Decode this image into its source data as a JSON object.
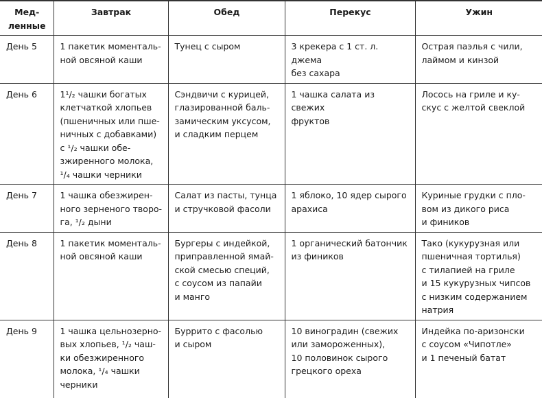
{
  "headers": [
    "Мед-\nленные",
    "Завтрак",
    "Обед",
    "Перекус",
    "Ужин"
  ],
  "rows": [
    {
      "day": "День 5",
      "breakfast": "1 пакетик моменталь-\nной овсяной каши",
      "lunch": "Тунец с сыром",
      "snack": "3 крекера с 1 ст. л. джема\nбез сахара",
      "dinner": "Острая паэлья с чили,\nлаймом и кинзой"
    },
    {
      "day": "День 6",
      "breakfast": "1¹/₂ чашки богатых\nклетчаткой хлопьев\n(пшеничных или пше-\nничных с добавками)\nс ¹/₂ чашки обе-\nзжиренного молока,\n¹/₄ чашки черники",
      "lunch": "Сэндвичи с курицей,\nглазированной баль-\nзамическим уксусом,\nи сладким перцем",
      "snack": "1 чашка салата из свежих\nфруктов",
      "dinner": "Лосось на гриле и ку-\nскус с желтой свеклой"
    },
    {
      "day": "День 7",
      "breakfast": "1 чашка обезжирен-\nного зерненого творо-\nга, ¹/₂ дыни",
      "lunch": "Салат из пасты, тунца\nи стручковой фасоли",
      "snack": "1 яблоко, 10 ядер сырого\nарахиса",
      "dinner": "Куриные грудки с пло-\nвом из дикого риса\nи фиников"
    },
    {
      "day": "День 8",
      "breakfast": "1 пакетик моменталь-\nной овсяной каши",
      "lunch": "Бургеры с индейкой,\nприправленной ямай-\nской смесью специй,\nс соусом из папайи\nи манго",
      "snack": "1 органический батончик\nиз фиников",
      "dinner": "Тако (кукурузная или\nпшеничная тортилья)\nс тилапией на гриле\nи 15 кукурузных чипсов\nс низким содержанием\nнатрия"
    },
    {
      "day": "День 9",
      "breakfast": "1 чашка цельнозерно-\nвых хлопьев, ¹/₂ чаш-\nки обезжиренного\nмолока, ¹/₄ чашки\nчерники",
      "lunch": "Буррито с фасолью\nи сыром",
      "snack": "10 виноградин (свежих\nили замороженных),\n10 половинок сырого\nгрецкого ореха",
      "dinner": "Индейка по-аризонски\nс соусом «Чипотле»\nи 1 печеный батат"
    }
  ]
}
